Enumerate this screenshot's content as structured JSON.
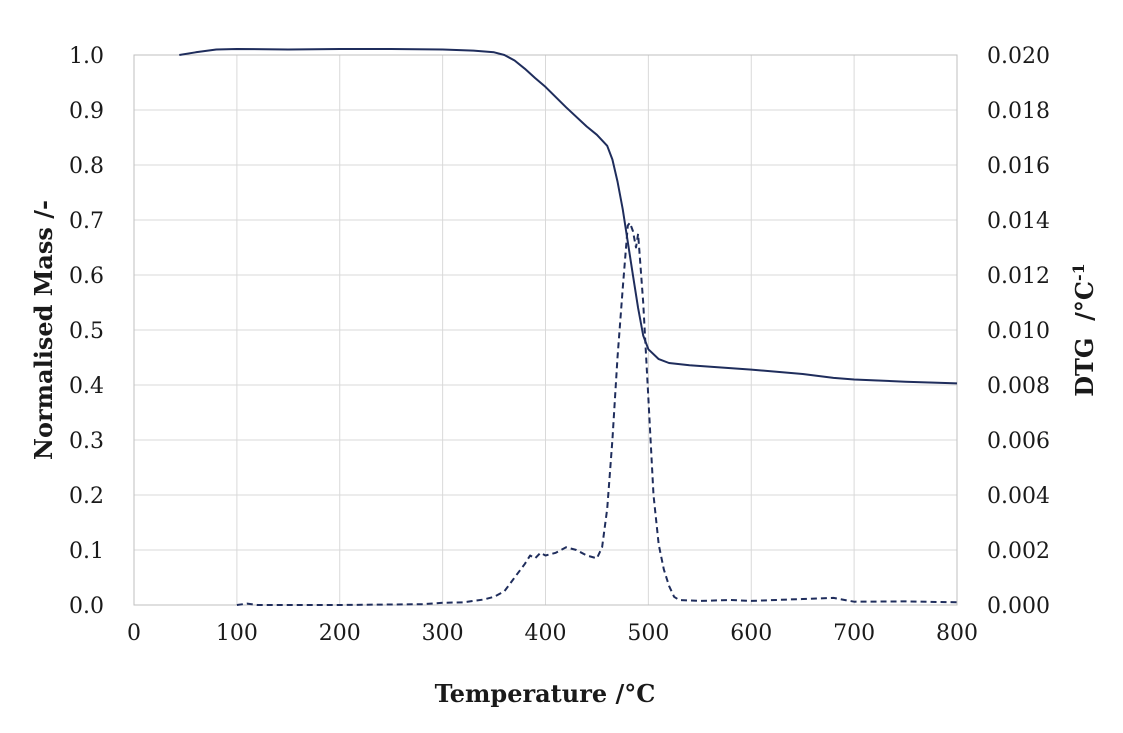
{
  "chart_data": {
    "type": "line",
    "xlabel": "Temperature /°C",
    "ylabel_left": "Normalised Mass /-",
    "ylabel_right": "DTG  /°C",
    "ylabel_right_sup": "-1",
    "xlim": [
      0,
      800
    ],
    "ylim_left": [
      0,
      1.0
    ],
    "ylim_right": [
      0,
      0.02
    ],
    "x_ticks": [
      "0",
      "100",
      "200",
      "300",
      "400",
      "500",
      "600",
      "700",
      "800"
    ],
    "y_left_ticks": [
      "0.0",
      "0.1",
      "0.2",
      "0.3",
      "0.4",
      "0.5",
      "0.6",
      "0.7",
      "0.8",
      "0.9",
      "1.0"
    ],
    "y_right_ticks": [
      "0.000",
      "0.002",
      "0.004",
      "0.006",
      "0.008",
      "0.010",
      "0.012",
      "0.014",
      "0.016",
      "0.018",
      "0.020"
    ],
    "grid": true,
    "line_color": "#1f2d5c",
    "series": [
      {
        "axis": "left",
        "style": "solid",
        "x": [
          44,
          60,
          80,
          100,
          150,
          200,
          250,
          300,
          330,
          350,
          360,
          370,
          380,
          390,
          400,
          420,
          440,
          450,
          460,
          465,
          470,
          475,
          480,
          485,
          490,
          495,
          500,
          510,
          520,
          540,
          600,
          650,
          680,
          700,
          750,
          800
        ],
        "y": [
          1.0,
          1.005,
          1.01,
          1.011,
          1.01,
          1.011,
          1.011,
          1.01,
          1.008,
          1.005,
          1.0,
          0.99,
          0.975,
          0.958,
          0.942,
          0.905,
          0.87,
          0.855,
          0.835,
          0.81,
          0.77,
          0.72,
          0.66,
          0.6,
          0.54,
          0.49,
          0.465,
          0.447,
          0.44,
          0.436,
          0.428,
          0.42,
          0.413,
          0.41,
          0.406,
          0.403
        ]
      },
      {
        "axis": "right",
        "style": "dashed",
        "x": [
          100,
          110,
          120,
          200,
          280,
          300,
          320,
          340,
          350,
          360,
          370,
          380,
          385,
          390,
          395,
          400,
          410,
          420,
          430,
          440,
          450,
          455,
          460,
          465,
          470,
          475,
          480,
          482,
          485,
          488,
          490,
          495,
          500,
          505,
          510,
          515,
          520,
          525,
          530,
          550,
          580,
          600,
          650,
          680,
          700,
          750,
          800
        ],
        "y": [
          0.0,
          5e-05,
          0.0,
          0.0,
          3e-05,
          8e-05,
          0.0001,
          0.0002,
          0.0003,
          0.0005,
          0.001,
          0.0015,
          0.0018,
          0.0017,
          0.0019,
          0.0018,
          0.0019,
          0.0021,
          0.002,
          0.0018,
          0.0017,
          0.0021,
          0.0035,
          0.006,
          0.009,
          0.0115,
          0.0138,
          0.0139,
          0.0136,
          0.013,
          0.0135,
          0.011,
          0.0075,
          0.004,
          0.0022,
          0.0013,
          0.0007,
          0.0003,
          0.00018,
          0.00015,
          0.00018,
          0.00015,
          0.00022,
          0.00026,
          0.00012,
          0.00013,
          0.0001
        ]
      }
    ]
  }
}
